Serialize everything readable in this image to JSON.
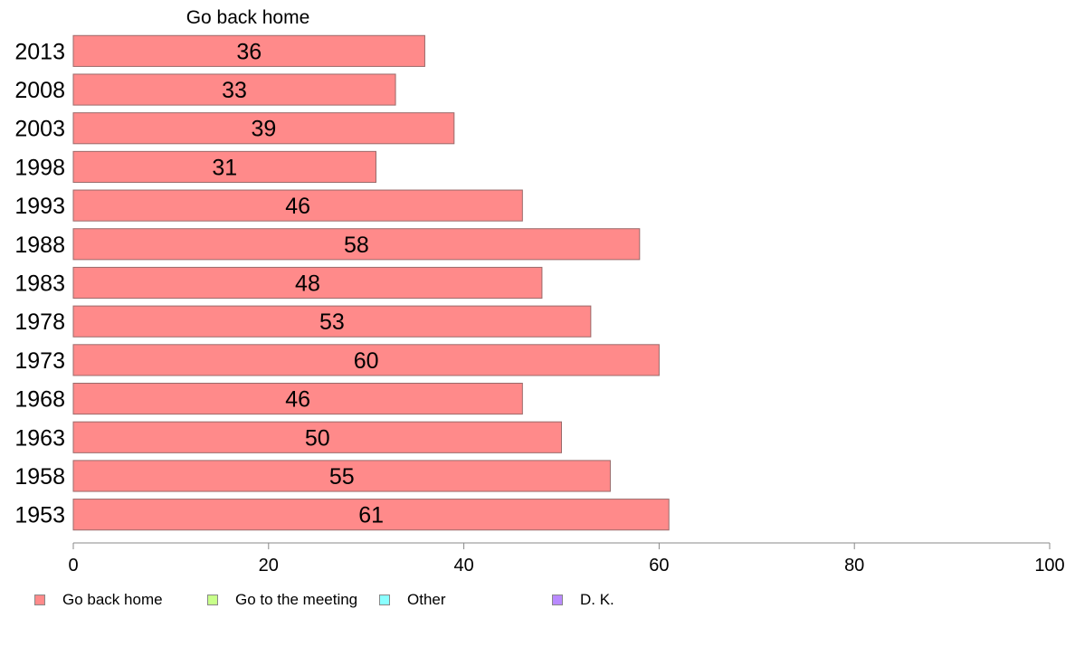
{
  "chart_data": {
    "type": "bar",
    "orientation": "horizontal",
    "title": "Go back home",
    "categories": [
      "2013",
      "2008",
      "2003",
      "1998",
      "1993",
      "1988",
      "1983",
      "1978",
      "1973",
      "1968",
      "1963",
      "1958",
      "1953"
    ],
    "series": [
      {
        "name": "Go back home",
        "color": "#ff8a8a",
        "values": [
          36,
          33,
          39,
          31,
          46,
          58,
          48,
          53,
          60,
          46,
          50,
          55,
          61
        ]
      }
    ],
    "xlim": [
      0,
      100
    ],
    "xticks": [
      0,
      20,
      40,
      60,
      80,
      100
    ],
    "grid": false,
    "legend_position": "bottom-left"
  },
  "legend": [
    {
      "label": "Go back home",
      "color": "#ff8a8a"
    },
    {
      "label": "Go to the meeting",
      "color": "#c8ff8a"
    },
    {
      "label": "Other",
      "color": "#8affff"
    },
    {
      "label": "D. K.",
      "color": "#b98aff"
    }
  ]
}
